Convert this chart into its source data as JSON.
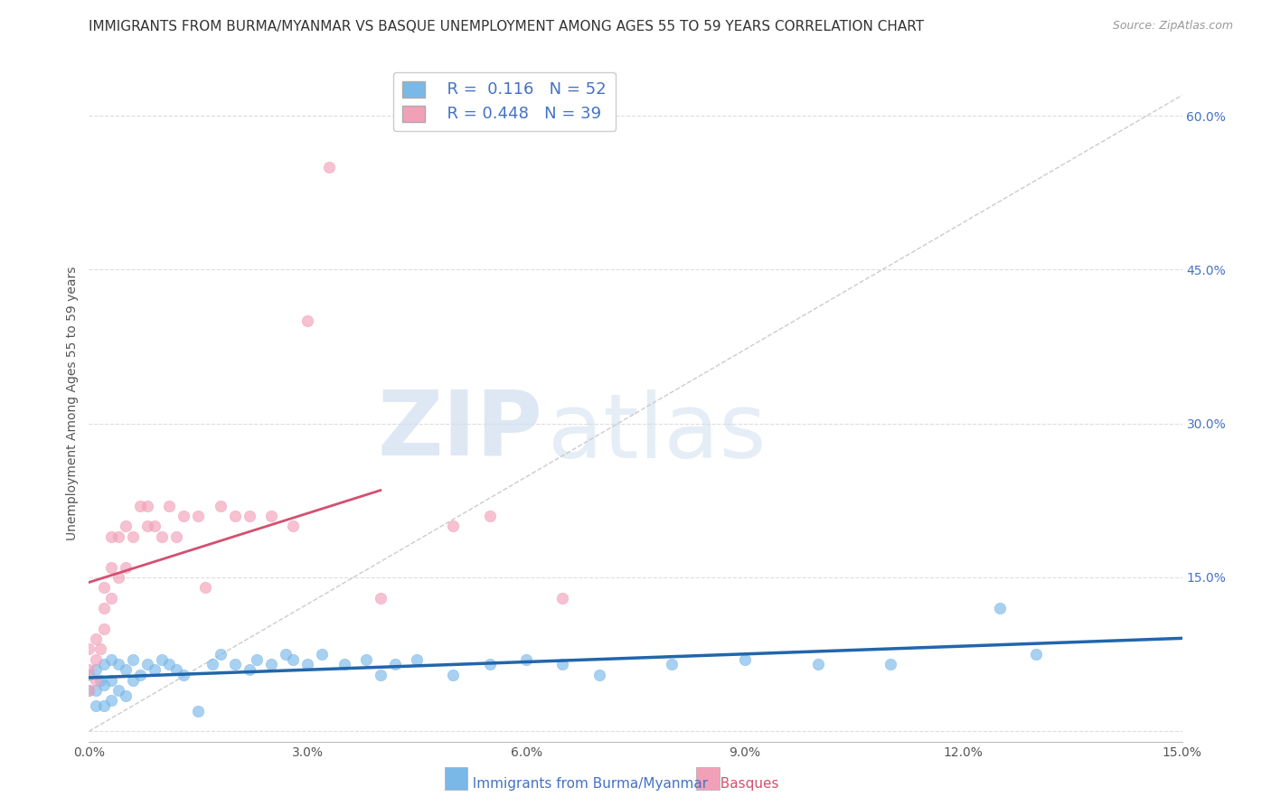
{
  "title": "IMMIGRANTS FROM BURMA/MYANMAR VS BASQUE UNEMPLOYMENT AMONG AGES 55 TO 59 YEARS CORRELATION CHART",
  "source": "Source: ZipAtlas.com",
  "ylabel": "Unemployment Among Ages 55 to 59 years",
  "xlim": [
    0.0,
    0.15
  ],
  "ylim": [
    -0.01,
    0.65
  ],
  "xticks": [
    0.0,
    0.03,
    0.06,
    0.09,
    0.12,
    0.15
  ],
  "xticklabels": [
    "0.0%",
    "3.0%",
    "6.0%",
    "9.0%",
    "12.0%",
    "15.0%"
  ],
  "yticks": [
    0.0,
    0.15,
    0.3,
    0.45,
    0.6
  ],
  "yticklabels": [
    "",
    "15.0%",
    "30.0%",
    "45.0%",
    "60.0%"
  ],
  "blue_color": "#7ab8e8",
  "pink_color": "#f2a0b8",
  "blue_line_color": "#2166ac",
  "pink_line_color": "#d45070",
  "diag_line_color": "#cccccc",
  "R_blue": 0.116,
  "N_blue": 52,
  "R_pink": 0.448,
  "N_pink": 39,
  "legend_labels": [
    "Immigrants from Burma/Myanmar",
    "Basques"
  ],
  "watermark_zip": "ZIP",
  "watermark_atlas": "atlas",
  "background_color": "#ffffff",
  "grid_color": "#dddddd",
  "blue_scatter_x": [
    0.0,
    0.0,
    0.001,
    0.001,
    0.001,
    0.0015,
    0.002,
    0.002,
    0.002,
    0.003,
    0.003,
    0.003,
    0.004,
    0.004,
    0.005,
    0.005,
    0.006,
    0.006,
    0.007,
    0.008,
    0.009,
    0.01,
    0.011,
    0.012,
    0.013,
    0.015,
    0.017,
    0.018,
    0.02,
    0.022,
    0.023,
    0.025,
    0.027,
    0.028,
    0.03,
    0.032,
    0.035,
    0.038,
    0.04,
    0.042,
    0.045,
    0.05,
    0.055,
    0.06,
    0.065,
    0.07,
    0.08,
    0.09,
    0.1,
    0.11,
    0.125,
    0.13
  ],
  "blue_scatter_y": [
    0.04,
    0.055,
    0.025,
    0.04,
    0.06,
    0.05,
    0.025,
    0.045,
    0.065,
    0.03,
    0.05,
    0.07,
    0.04,
    0.065,
    0.035,
    0.06,
    0.05,
    0.07,
    0.055,
    0.065,
    0.06,
    0.07,
    0.065,
    0.06,
    0.055,
    0.02,
    0.065,
    0.075,
    0.065,
    0.06,
    0.07,
    0.065,
    0.075,
    0.07,
    0.065,
    0.075,
    0.065,
    0.07,
    0.055,
    0.065,
    0.07,
    0.055,
    0.065,
    0.07,
    0.065,
    0.055,
    0.065,
    0.07,
    0.065,
    0.065,
    0.12,
    0.075
  ],
  "pink_scatter_x": [
    0.0,
    0.0,
    0.0,
    0.001,
    0.001,
    0.001,
    0.0015,
    0.002,
    0.002,
    0.002,
    0.003,
    0.003,
    0.003,
    0.004,
    0.004,
    0.005,
    0.005,
    0.006,
    0.007,
    0.008,
    0.008,
    0.009,
    0.01,
    0.011,
    0.012,
    0.013,
    0.015,
    0.016,
    0.018,
    0.02,
    0.022,
    0.025,
    0.028,
    0.03,
    0.033,
    0.04,
    0.05,
    0.055,
    0.065
  ],
  "pink_scatter_y": [
    0.04,
    0.06,
    0.08,
    0.05,
    0.07,
    0.09,
    0.08,
    0.1,
    0.12,
    0.14,
    0.13,
    0.16,
    0.19,
    0.15,
    0.19,
    0.16,
    0.2,
    0.19,
    0.22,
    0.2,
    0.22,
    0.2,
    0.19,
    0.22,
    0.19,
    0.21,
    0.21,
    0.14,
    0.22,
    0.21,
    0.21,
    0.21,
    0.2,
    0.4,
    0.55,
    0.13,
    0.2,
    0.21,
    0.13
  ],
  "title_fontsize": 11,
  "axis_label_fontsize": 10,
  "tick_fontsize": 10,
  "source_fontsize": 9
}
